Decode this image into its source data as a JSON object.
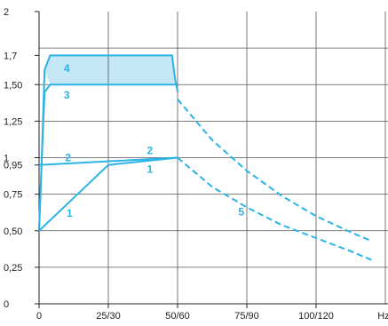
{
  "chart_data": {
    "type": "line",
    "x_ticks": [
      {
        "v": 0,
        "label": "0"
      },
      {
        "v": 25,
        "label": "25/30"
      },
      {
        "v": 50,
        "label": "50/60"
      },
      {
        "v": 75,
        "label": "75/90"
      },
      {
        "v": 100,
        "label": "100/120"
      }
    ],
    "x_unit": "Hz",
    "y_ticks": [
      {
        "v": 0,
        "label": "0"
      },
      {
        "v": 0.25,
        "label": "0,25"
      },
      {
        "v": 0.5,
        "label": "0,50"
      },
      {
        "v": 0.75,
        "label": "0,75"
      },
      {
        "v": 0.95,
        "label": "0,95"
      },
      {
        "v": 1,
        "label": "1"
      },
      {
        "v": 1.25,
        "label": "1,25"
      },
      {
        "v": 1.5,
        "label": "1,50"
      },
      {
        "v": 1.7,
        "label": "1,7"
      },
      {
        "v": 2,
        "label": "2"
      }
    ],
    "xlim": [
      0,
      125
    ],
    "ylim": [
      0,
      2
    ],
    "vertical_grid": [
      0,
      25,
      50,
      75,
      100,
      125
    ],
    "horizontal_grid": [
      0.25,
      0.5,
      0.75,
      1,
      1.25,
      1.5,
      1.75
    ],
    "grid": true,
    "colors": {
      "curve": "#2bb3e6",
      "fill": "#c5e6f5",
      "grid": "#555555",
      "text": "#222222"
    },
    "series": [
      {
        "label": "1",
        "style": "solid",
        "points": [
          [
            0,
            0.5
          ],
          [
            25,
            0.95
          ],
          [
            50,
            1
          ]
        ],
        "label_at": [
          [
            11,
            0.62
          ],
          [
            40,
            0.92
          ]
        ]
      },
      {
        "label": "2",
        "style": "solid",
        "points": [
          [
            0,
            0.95
          ],
          [
            50,
            1
          ]
        ],
        "label_at": [
          [
            10.5,
            1.0
          ],
          [
            40,
            1.05
          ]
        ]
      },
      {
        "label": "3",
        "style": "solid",
        "points": [
          [
            0,
            0.5
          ],
          [
            1,
            1.0
          ],
          [
            2,
            1.45
          ],
          [
            4,
            1.5
          ],
          [
            50,
            1.5
          ]
        ],
        "label_at": [
          [
            10,
            1.43
          ]
        ]
      },
      {
        "label": "4",
        "style": "solid",
        "points": [
          [
            0,
            0.5
          ],
          [
            1,
            1.0
          ],
          [
            2,
            1.6
          ],
          [
            4,
            1.7
          ],
          [
            48,
            1.7
          ],
          [
            49,
            1.55
          ],
          [
            50,
            1.45
          ]
        ],
        "label_at": [
          [
            10,
            1.61
          ]
        ]
      },
      {
        "label": "",
        "style": "dashed",
        "points": [
          [
            50,
            1.4
          ],
          [
            62.5,
            1.12
          ],
          [
            75,
            0.91
          ],
          [
            87.5,
            0.74
          ],
          [
            100,
            0.6
          ],
          [
            112.5,
            0.49
          ],
          [
            120,
            0.43
          ]
        ],
        "label_at": []
      },
      {
        "label": "5",
        "style": "dashed",
        "points": [
          [
            50,
            1
          ],
          [
            62.5,
            0.8
          ],
          [
            75,
            0.66
          ],
          [
            87.5,
            0.54
          ],
          [
            100,
            0.45
          ],
          [
            112.5,
            0.36
          ],
          [
            120,
            0.3
          ]
        ],
        "label_at": [
          [
            73,
            0.63
          ]
        ]
      }
    ],
    "filled_band": {
      "top": [
        [
          2,
          1.6
        ],
        [
          4,
          1.7
        ],
        [
          48,
          1.7
        ],
        [
          49,
          1.55
        ],
        [
          50,
          1.5
        ]
      ],
      "bottom": [
        [
          4,
          1.5
        ],
        [
          50,
          1.5
        ]
      ]
    }
  }
}
